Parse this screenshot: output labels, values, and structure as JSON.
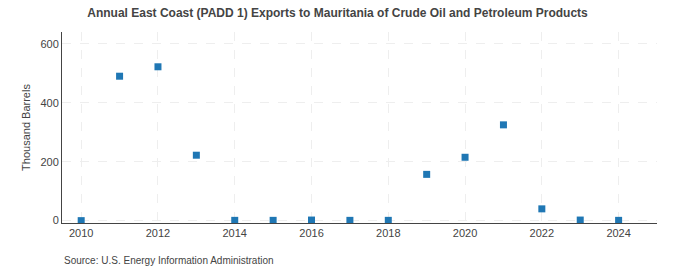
{
  "chart_data": {
    "type": "scatter",
    "title": "Annual East Coast (PADD 1) Exports to Mauritania of Crude Oil and Petroleum Products",
    "ylabel": "Thousand Barrels",
    "annotations": [
      "Source: U.S. Energy Information Administration"
    ],
    "x": [
      2010,
      2011,
      2012,
      2013,
      2014,
      2015,
      2016,
      2017,
      2018,
      2019,
      2020,
      2021,
      2022,
      2023,
      2024
    ],
    "values": [
      0,
      490,
      522,
      222,
      1,
      1,
      2,
      1,
      1,
      157,
      215,
      325,
      40,
      2,
      1
    ],
    "marker": "square",
    "xlim": [
      2009.5,
      2025.0
    ],
    "xticks": [
      2010,
      2012,
      2014,
      2016,
      2018,
      2020,
      2022,
      2024
    ],
    "ylim": [
      -8,
      640
    ],
    "yticks": [
      0,
      200,
      400,
      600
    ],
    "grid": true
  }
}
